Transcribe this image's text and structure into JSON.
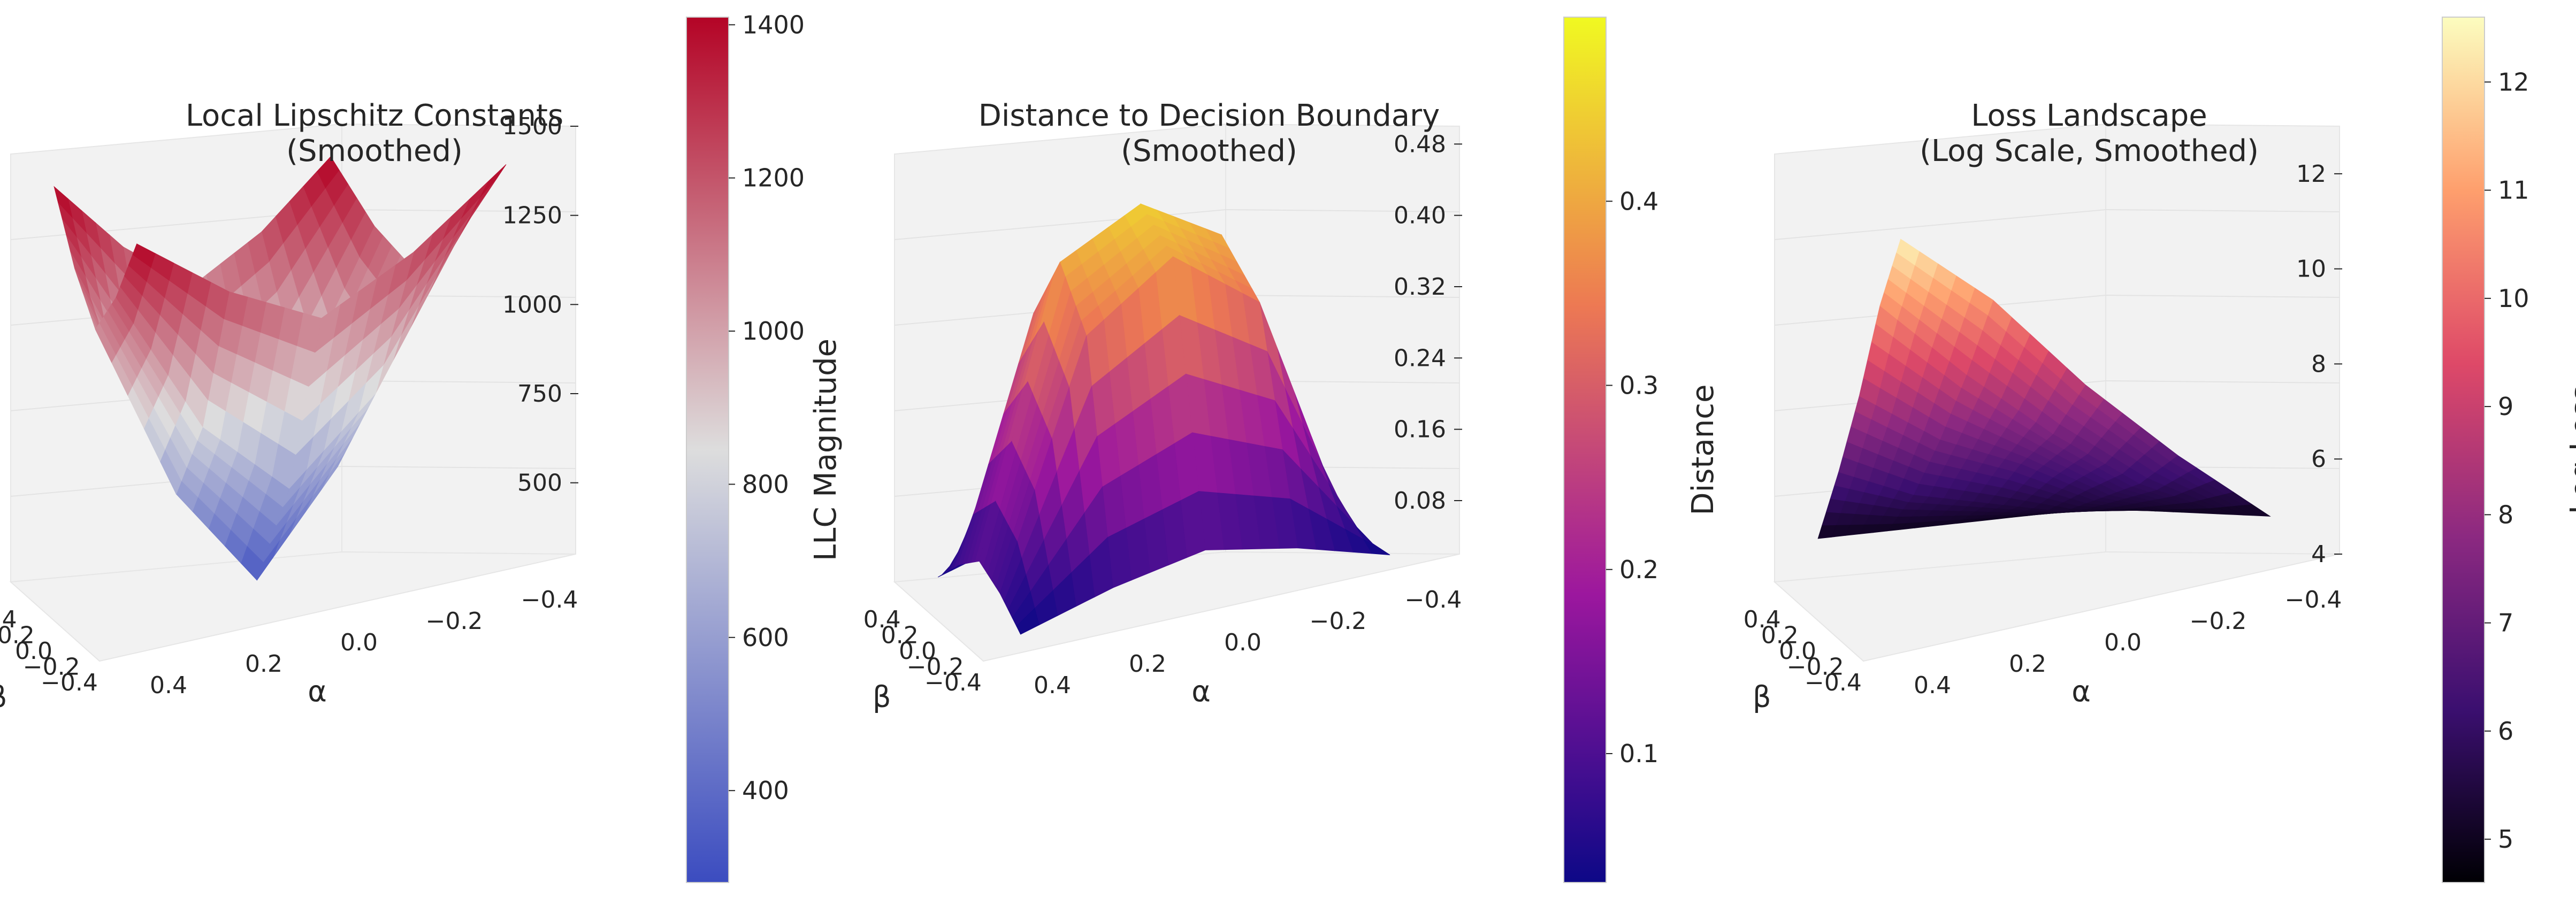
{
  "chart_data": [
    {
      "type": "surface3d",
      "title": "Local Lipschitz Constants\n(Smoothed)",
      "xlabel": "β",
      "ylabel": "α",
      "zlabel": "",
      "colormap": "coolwarm",
      "colors": [
        "#3b4cc0",
        "#dddddd",
        "#b40426"
      ],
      "x_ticks": [
        "−0.4",
        "−0.2",
        "0.0",
        "0.2",
        "0.4"
      ],
      "y_ticks": [
        "−0.4",
        "−0.2",
        "0.0",
        "0.2",
        "0.4"
      ],
      "z_ticks": [
        "500",
        "750",
        "1000",
        "1250",
        "1500"
      ],
      "zlim": [
        300,
        1500
      ],
      "colorbar": {
        "label": "LLC Magnitude",
        "range": [
          280,
          1410
        ],
        "ticks": [
          "400",
          "600",
          "800",
          "1000",
          "1200",
          "1400"
        ]
      },
      "x": [
        -0.5,
        -0.25,
        0.0,
        0.25,
        0.5
      ],
      "y": [
        -0.5,
        -0.25,
        0.0,
        0.25,
        0.5
      ],
      "z": [
        [
          1420,
          1230,
          1100,
          1230,
          1420
        ],
        [
          1230,
          820,
          600,
          820,
          1230
        ],
        [
          1100,
          600,
          320,
          600,
          1100
        ],
        [
          1230,
          820,
          600,
          820,
          1230
        ],
        [
          1420,
          1230,
          1100,
          1230,
          1420
        ]
      ],
      "grid": true,
      "legend": "colorbar-right"
    },
    {
      "type": "surface3d",
      "title": "Distance to Decision Boundary\n(Smoothed)",
      "xlabel": "β",
      "ylabel": "α",
      "zlabel": "",
      "colormap": "plasma",
      "colors": [
        "#0d0887",
        "#9c179e",
        "#ed7953",
        "#f0f921"
      ],
      "x_ticks": [
        "−0.4",
        "−0.2",
        "0.0",
        "0.2",
        "0.4"
      ],
      "y_ticks": [
        "−0.4",
        "−0.2",
        "0.0",
        "0.2",
        "0.4"
      ],
      "z_ticks": [
        "0.08",
        "0.16",
        "0.24",
        "0.32",
        "0.40",
        "0.48"
      ],
      "zlim": [
        0.02,
        0.5
      ],
      "colorbar": {
        "label": "Distance",
        "range": [
          0.03,
          0.5
        ],
        "ticks": [
          "0.1",
          "0.2",
          "0.3",
          "0.4"
        ]
      },
      "x": [
        -0.5,
        -0.25,
        0.0,
        0.25,
        0.5
      ],
      "y": [
        -0.5,
        -0.25,
        0.0,
        0.25,
        0.5
      ],
      "z": [
        [
          0.03,
          0.06,
          0.08,
          0.06,
          0.03
        ],
        [
          0.06,
          0.33,
          0.4,
          0.33,
          0.06
        ],
        [
          0.08,
          0.4,
          0.45,
          0.4,
          0.08
        ],
        [
          0.06,
          0.33,
          0.4,
          0.33,
          0.06
        ],
        [
          0.03,
          0.06,
          0.08,
          0.06,
          0.03
        ]
      ],
      "grid": true,
      "legend": "colorbar-right"
    },
    {
      "type": "surface3d",
      "title": "Loss Landscape\n(Log Scale, Smoothed)",
      "xlabel": "β",
      "ylabel": "α",
      "zlabel": "",
      "colormap": "magma",
      "colors": [
        "#000004",
        "#3b0f70",
        "#8c2981",
        "#de4968",
        "#fe9f6d",
        "#fcfdbf"
      ],
      "x_ticks": [
        "−0.4",
        "−0.2",
        "0.0",
        "0.2",
        "0.4"
      ],
      "y_ticks": [
        "−0.4",
        "−0.2",
        "0.0",
        "0.2",
        "0.4"
      ],
      "z_ticks": [
        "4",
        "6",
        "8",
        "10",
        "12"
      ],
      "zlim": [
        4,
        13
      ],
      "colorbar": {
        "label": "Log Loss",
        "range": [
          4.6,
          12.6
        ],
        "ticks": [
          "5",
          "6",
          "7",
          "8",
          "9",
          "10",
          "11",
          "12"
        ]
      },
      "x": [
        -0.5,
        -0.25,
        0.0,
        0.25,
        0.5
      ],
      "y": [
        -0.5,
        -0.25,
        0.0,
        0.25,
        0.5
      ],
      "z": [
        [
          12.5,
          10.8,
          8.6,
          6.7,
          5.0
        ],
        [
          10.8,
          9.0,
          7.4,
          6.0,
          5.0
        ],
        [
          8.6,
          7.4,
          6.6,
          5.6,
          5.0
        ],
        [
          6.7,
          6.0,
          5.6,
          5.2,
          5.0
        ],
        [
          5.0,
          5.0,
          5.0,
          5.0,
          5.0
        ]
      ],
      "grid": true,
      "legend": "colorbar-right"
    }
  ]
}
